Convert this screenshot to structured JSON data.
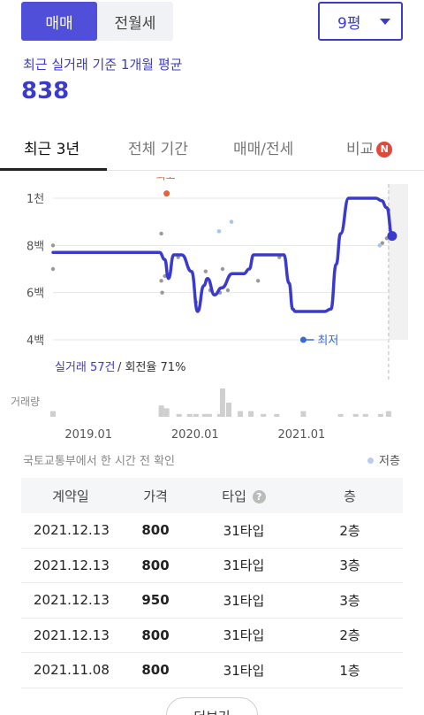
{
  "trade_toggle": {
    "active": "매매",
    "inactive": "전월세"
  },
  "size_select": {
    "value": "9평"
  },
  "summary": {
    "caption": "최근 실거래 기준 1개월 평균",
    "value": "838"
  },
  "tabs": [
    {
      "label": "최근 3년",
      "active": true
    },
    {
      "label": "전체 기간",
      "active": false
    },
    {
      "label": "매매/전세",
      "active": false
    },
    {
      "label": "비교",
      "active": false,
      "badge": "N"
    }
  ],
  "chart_data": {
    "type": "line",
    "y_ticks": [
      "1천",
      "8백",
      "6백",
      "4백"
    ],
    "y_tick_values": [
      1000,
      800,
      600,
      400
    ],
    "ylim": [
      370,
      1090
    ],
    "x_ticks": [
      "2019.01",
      "2020.01",
      "2021.01"
    ],
    "xlim_months": [
      -4,
      36
    ],
    "series": [
      {
        "x_months": [
          -4,
          -3,
          0,
          3,
          6,
          8,
          8.6,
          9,
          9.6,
          10.5,
          11.6,
          12.3,
          13,
          13.4,
          14.2,
          15,
          16.2,
          17.5,
          18.1,
          18.6,
          19.2,
          20.5,
          22,
          22.6,
          23,
          23.3,
          24,
          25.5,
          26.6,
          27.3,
          27.9,
          28.4,
          29.3,
          30.3,
          31.4,
          32.4,
          33,
          33.6,
          34.2
        ],
        "values": [
          770,
          770,
          770,
          770,
          770,
          770,
          740,
          660,
          760,
          760,
          690,
          520,
          630,
          660,
          590,
          620,
          680,
          680,
          700,
          760,
          760,
          760,
          760,
          640,
          530,
          520,
          520,
          520,
          520,
          530,
          720,
          850,
          1000,
          1000,
          1000,
          1000,
          990,
          960,
          840
        ]
      }
    ],
    "transactions": [
      {
        "x_months": -4,
        "value": 800
      },
      {
        "x_months": -4,
        "value": 700
      },
      {
        "x_months": 8.2,
        "value": 850
      },
      {
        "x_months": 8.2,
        "value": 650
      },
      {
        "x_months": 8.3,
        "value": 600
      },
      {
        "x_months": 8.6,
        "value": 670
      },
      {
        "x_months": 10.1,
        "value": 750
      },
      {
        "x_months": 12.1,
        "value": 560
      },
      {
        "x_months": 13.2,
        "value": 690
      },
      {
        "x_months": 13.7,
        "value": 610
      },
      {
        "x_months": 14.8,
        "value": 600
      },
      {
        "x_months": 15.1,
        "value": 700
      },
      {
        "x_months": 15.7,
        "value": 610
      },
      {
        "x_months": 19.1,
        "value": 650
      },
      {
        "x_months": 21.5,
        "value": 750
      },
      {
        "x_months": 33.1,
        "value": 810
      },
      {
        "x_months": 33.6,
        "value": 830
      },
      {
        "x_months": 33.8,
        "value": 950
      }
    ],
    "low_floor_points": [
      {
        "x_months": 14.7,
        "value": 860
      },
      {
        "x_months": 16.1,
        "value": 900
      },
      {
        "x_months": 32.8,
        "value": 800
      }
    ],
    "highest": {
      "label": "최고",
      "x_months": 8.8,
      "value": 1020
    },
    "lowest": {
      "label": "최저",
      "x_months": 24.2,
      "value": 400
    },
    "shaded_from_month": 33.8,
    "volume_label": "거래량",
    "volume": [
      {
        "x_months": -4,
        "count": 2
      },
      {
        "x_months": 8.2,
        "count": 4
      },
      {
        "x_months": 8.8,
        "count": 3
      },
      {
        "x_months": 10.2,
        "count": 1
      },
      {
        "x_months": 11.4,
        "count": 1
      },
      {
        "x_months": 12.1,
        "count": 1
      },
      {
        "x_months": 13.1,
        "count": 1
      },
      {
        "x_months": 13.6,
        "count": 1
      },
      {
        "x_months": 14.8,
        "count": 1
      },
      {
        "x_months": 15.1,
        "count": 10
      },
      {
        "x_months": 15.8,
        "count": 5
      },
      {
        "x_months": 17.1,
        "count": 2
      },
      {
        "x_months": 18.3,
        "count": 2
      },
      {
        "x_months": 19.7,
        "count": 1
      },
      {
        "x_months": 21.2,
        "count": 1
      },
      {
        "x_months": 24.2,
        "count": 2
      },
      {
        "x_months": 28.4,
        "count": 1
      },
      {
        "x_months": 30.1,
        "count": 1
      },
      {
        "x_months": 31.2,
        "count": 1
      },
      {
        "x_months": 32.9,
        "count": 1
      },
      {
        "x_months": 33.8,
        "count": 2
      }
    ],
    "accent_color": "#3a3acc",
    "high_color": "#e0653a",
    "low_color": "#3a6acc"
  },
  "chart_info": {
    "trades": "실거래 57건",
    "turnover": "/ 회전율 71%"
  },
  "source_note": "국토교통부에서 한 시간 전 확인",
  "legend": {
    "low_floor": "저층"
  },
  "table": {
    "headers": {
      "date": "계약일",
      "price": "가격",
      "type": "타입",
      "floor": "층",
      "help": "?"
    },
    "rows": [
      {
        "date": "2021.12.13",
        "price": "800",
        "type": "31타입",
        "floor": "2층"
      },
      {
        "date": "2021.12.13",
        "price": "800",
        "type": "31타입",
        "floor": "3층"
      },
      {
        "date": "2021.12.13",
        "price": "950",
        "type": "31타입",
        "floor": "3층"
      },
      {
        "date": "2021.12.13",
        "price": "800",
        "type": "31타입",
        "floor": "2층"
      },
      {
        "date": "2021.11.08",
        "price": "800",
        "type": "31타입",
        "floor": "1층"
      }
    ]
  },
  "more_button": "더보기"
}
